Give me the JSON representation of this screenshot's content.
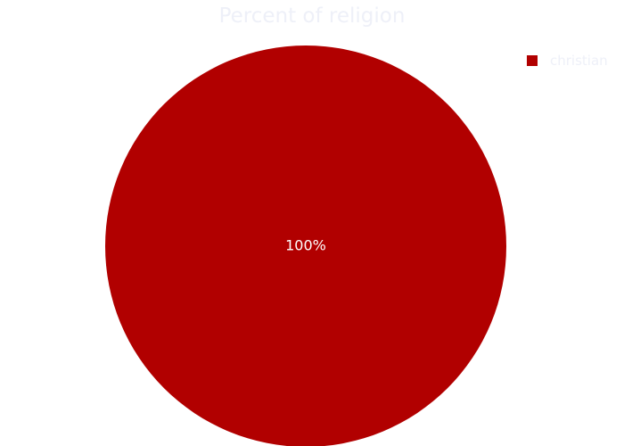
{
  "chart_data": {
    "type": "pie",
    "title": "Percent of religion",
    "categories": [
      "christian"
    ],
    "values": [
      100
    ],
    "labels": [
      "100%"
    ],
    "legend": {
      "position": "top-right",
      "entries": [
        "christian"
      ]
    },
    "colors": [
      "#b10000"
    ]
  },
  "theme": {
    "title_color": "#eef0f8",
    "legend_text_color": "#eef0f8",
    "slice_label_color": "#ffffff",
    "background": "#ffffff"
  }
}
